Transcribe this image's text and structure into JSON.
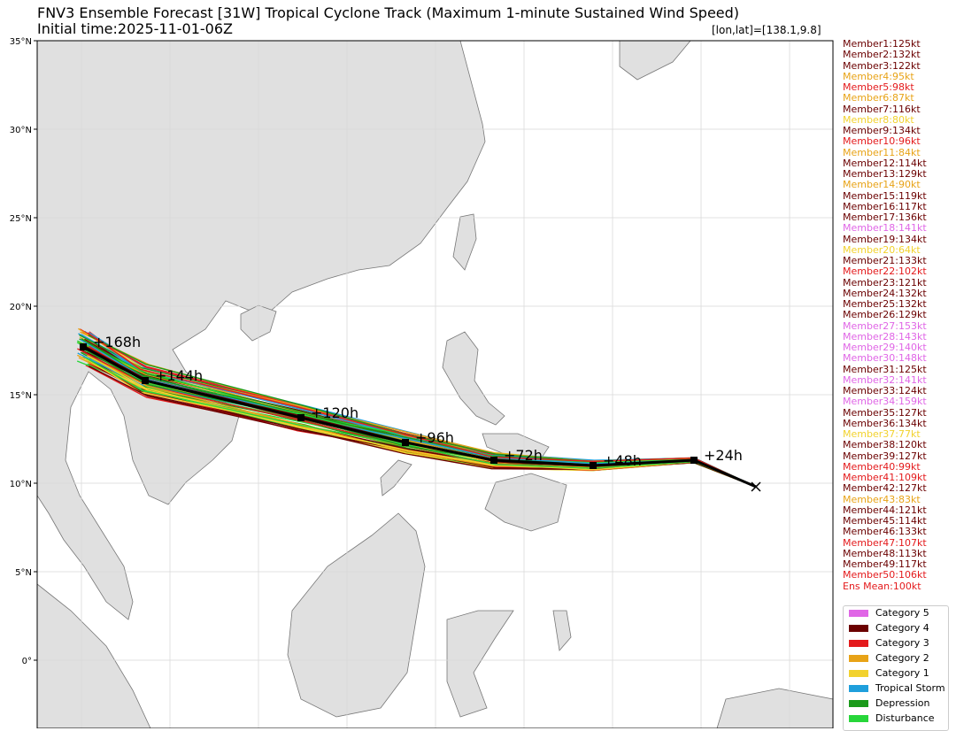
{
  "title": "FNV3 Ensemble Forecast [31W] Tropical Cyclone Track (Maximum 1-minute Sustained Wind Speed)",
  "subtitle": "Initial time:2025-11-01-06Z",
  "position_readout": "[lon,lat]=[138.1,9.8]",
  "lat_labels": [
    "35°N",
    "30°N",
    "25°N",
    "20°N",
    "15°N",
    "10°N",
    "5°N",
    "0°"
  ],
  "colors": {
    "category_5": "#e066e6",
    "category_4": "#6b0000",
    "category_3": "#e41a1c",
    "category_2": "#e8a317",
    "category_1": "#f2d22e",
    "tropical_storm": "#1f9fdc",
    "depression": "#1a9a1a",
    "disturbance": "#27d63a",
    "land": "#e0e0e0",
    "mean_track": "#000000"
  },
  "mean_track": {
    "points": [
      {
        "lon": 138.1,
        "lat": 9.8,
        "label": ""
      },
      {
        "lon": 134.6,
        "lat": 11.3,
        "label": "+24h"
      },
      {
        "lon": 128.9,
        "lat": 11.0,
        "label": "+48h"
      },
      {
        "lon": 123.3,
        "lat": 11.3,
        "label": "+72h"
      },
      {
        "lon": 118.3,
        "lat": 12.3,
        "label": "+96h"
      },
      {
        "lon": 112.4,
        "lat": 13.7,
        "label": "+120h"
      },
      {
        "lon": 103.6,
        "lat": 15.8,
        "label": "+144h"
      },
      {
        "lon": 100.1,
        "lat": 17.7,
        "label": "+168h"
      }
    ]
  },
  "members": [
    {
      "text": "Member1:125kt",
      "category": "category_4"
    },
    {
      "text": "Member2:132kt",
      "category": "category_4"
    },
    {
      "text": "Member3:122kt",
      "category": "category_4"
    },
    {
      "text": "Member4:95kt",
      "category": "category_2"
    },
    {
      "text": "Member5:98kt",
      "category": "category_3"
    },
    {
      "text": "Member6:87kt",
      "category": "category_2"
    },
    {
      "text": "Member7:116kt",
      "category": "category_4"
    },
    {
      "text": "Member8:80kt",
      "category": "category_1"
    },
    {
      "text": "Member9:134kt",
      "category": "category_4"
    },
    {
      "text": "Member10:96kt",
      "category": "category_3"
    },
    {
      "text": "Member11:84kt",
      "category": "category_2"
    },
    {
      "text": "Member12:114kt",
      "category": "category_4"
    },
    {
      "text": "Member13:129kt",
      "category": "category_4"
    },
    {
      "text": "Member14:90kt",
      "category": "category_2"
    },
    {
      "text": "Member15:119kt",
      "category": "category_4"
    },
    {
      "text": "Member16:117kt",
      "category": "category_4"
    },
    {
      "text": "Member17:136kt",
      "category": "category_4"
    },
    {
      "text": "Member18:141kt",
      "category": "category_5"
    },
    {
      "text": "Member19:134kt",
      "category": "category_4"
    },
    {
      "text": "Member20:64kt",
      "category": "category_1"
    },
    {
      "text": "Member21:133kt",
      "category": "category_4"
    },
    {
      "text": "Member22:102kt",
      "category": "category_3"
    },
    {
      "text": "Member23:121kt",
      "category": "category_4"
    },
    {
      "text": "Member24:132kt",
      "category": "category_4"
    },
    {
      "text": "Member25:132kt",
      "category": "category_4"
    },
    {
      "text": "Member26:129kt",
      "category": "category_4"
    },
    {
      "text": "Member27:153kt",
      "category": "category_5"
    },
    {
      "text": "Member28:143kt",
      "category": "category_5"
    },
    {
      "text": "Member29:140kt",
      "category": "category_5"
    },
    {
      "text": "Member30:148kt",
      "category": "category_5"
    },
    {
      "text": "Member31:125kt",
      "category": "category_4"
    },
    {
      "text": "Member32:141kt",
      "category": "category_5"
    },
    {
      "text": "Member33:124kt",
      "category": "category_4"
    },
    {
      "text": "Member34:159kt",
      "category": "category_5"
    },
    {
      "text": "Member35:127kt",
      "category": "category_4"
    },
    {
      "text": "Member36:134kt",
      "category": "category_4"
    },
    {
      "text": "Member37:77kt",
      "category": "category_1"
    },
    {
      "text": "Member38:120kt",
      "category": "category_4"
    },
    {
      "text": "Member39:127kt",
      "category": "category_4"
    },
    {
      "text": "Member40:99kt",
      "category": "category_3"
    },
    {
      "text": "Member41:109kt",
      "category": "category_3"
    },
    {
      "text": "Member42:127kt",
      "category": "category_4"
    },
    {
      "text": "Member43:83kt",
      "category": "category_2"
    },
    {
      "text": "Member44:121kt",
      "category": "category_4"
    },
    {
      "text": "Member45:114kt",
      "category": "category_4"
    },
    {
      "text": "Member46:133kt",
      "category": "category_4"
    },
    {
      "text": "Member47:107kt",
      "category": "category_3"
    },
    {
      "text": "Member48:113kt",
      "category": "category_4"
    },
    {
      "text": "Member49:117kt",
      "category": "category_4"
    },
    {
      "text": "Member50:106kt",
      "category": "category_3"
    },
    {
      "text": "Ens Mean:100kt",
      "category": "category_3"
    }
  ],
  "category_legend": [
    {
      "label": "Category 5",
      "key": "category_5"
    },
    {
      "label": "Category 4",
      "key": "category_4"
    },
    {
      "label": "Category 3",
      "key": "category_3"
    },
    {
      "label": "Category 2",
      "key": "category_2"
    },
    {
      "label": "Category 1",
      "key": "category_1"
    },
    {
      "label": "Tropical Storm",
      "key": "tropical_storm"
    },
    {
      "label": "Depression",
      "key": "depression"
    },
    {
      "label": "Disturbance",
      "key": "disturbance"
    }
  ]
}
